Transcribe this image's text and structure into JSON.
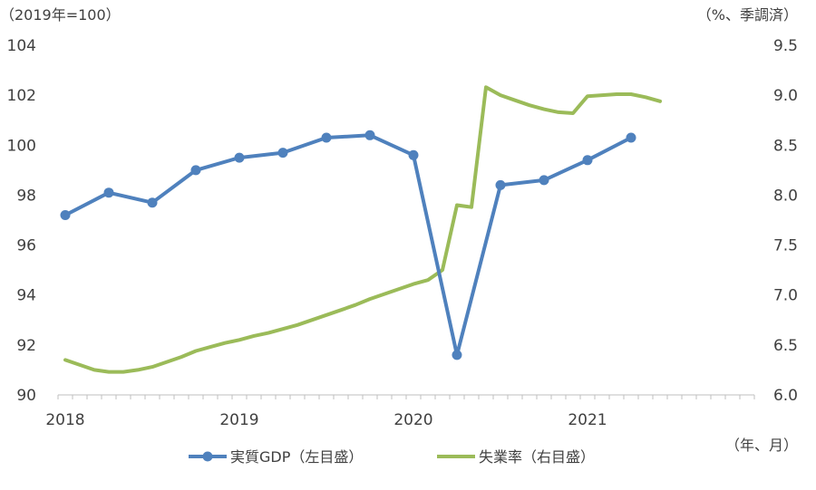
{
  "chart_data": {
    "type": "line",
    "left_unit": "（2019年=100）",
    "right_unit": "（%、季調済）",
    "x_unit": "（年、月）",
    "x_tick_labels": [
      "2018",
      "2019",
      "2020",
      "2021"
    ],
    "y_left_ticks": [
      "90",
      "92",
      "94",
      "96",
      "98",
      "100",
      "102",
      "104"
    ],
    "y_right_ticks": [
      "6.0",
      "6.5",
      "7.0",
      "7.5",
      "8.0",
      "8.5",
      "9.0",
      "9.5"
    ],
    "y_left_range": [
      90,
      104
    ],
    "y_right_range": [
      6.0,
      9.5
    ],
    "x_range_months": [
      "2018-01",
      "2021-12"
    ],
    "series": [
      {
        "name": "実質GDP（左目盛）",
        "axis": "left",
        "color": "#4f81bd",
        "marker": "circle",
        "x": [
          "2018-01",
          "2018-04",
          "2018-07",
          "2018-10",
          "2019-01",
          "2019-04",
          "2019-07",
          "2019-10",
          "2020-01",
          "2020-04",
          "2020-07",
          "2020-10",
          "2021-01",
          "2021-04"
        ],
        "values": [
          97.2,
          98.1,
          97.7,
          99.0,
          99.5,
          99.7,
          100.3,
          100.4,
          99.6,
          91.6,
          98.4,
          98.6,
          99.4,
          100.3
        ]
      },
      {
        "name": "失業率（右目盛）",
        "axis": "right",
        "color": "#9bbb59",
        "marker": "none",
        "x": [
          "2018-01",
          "2018-02",
          "2018-03",
          "2018-04",
          "2018-05",
          "2018-06",
          "2018-07",
          "2018-08",
          "2018-09",
          "2018-10",
          "2018-11",
          "2018-12",
          "2019-01",
          "2019-02",
          "2019-03",
          "2019-04",
          "2019-05",
          "2019-06",
          "2019-07",
          "2019-08",
          "2019-09",
          "2019-10",
          "2019-11",
          "2019-12",
          "2020-01",
          "2020-02",
          "2020-03",
          "2020-04",
          "2020-05",
          "2020-06",
          "2020-07",
          "2020-08",
          "2020-09",
          "2020-10",
          "2020-11",
          "2020-12",
          "2021-01",
          "2021-02",
          "2021-03",
          "2021-04",
          "2021-05",
          "2021-06"
        ],
        "values": [
          6.35,
          6.3,
          6.25,
          6.23,
          6.23,
          6.25,
          6.28,
          6.33,
          6.38,
          6.44,
          6.48,
          6.52,
          6.55,
          6.59,
          6.62,
          6.66,
          6.7,
          6.75,
          6.8,
          6.85,
          6.9,
          6.96,
          7.01,
          7.06,
          7.11,
          7.15,
          7.25,
          7.9,
          7.88,
          9.08,
          9.0,
          8.95,
          8.9,
          8.86,
          8.83,
          8.82,
          8.99,
          9.0,
          9.01,
          9.01,
          8.98,
          8.94
        ]
      }
    ]
  }
}
